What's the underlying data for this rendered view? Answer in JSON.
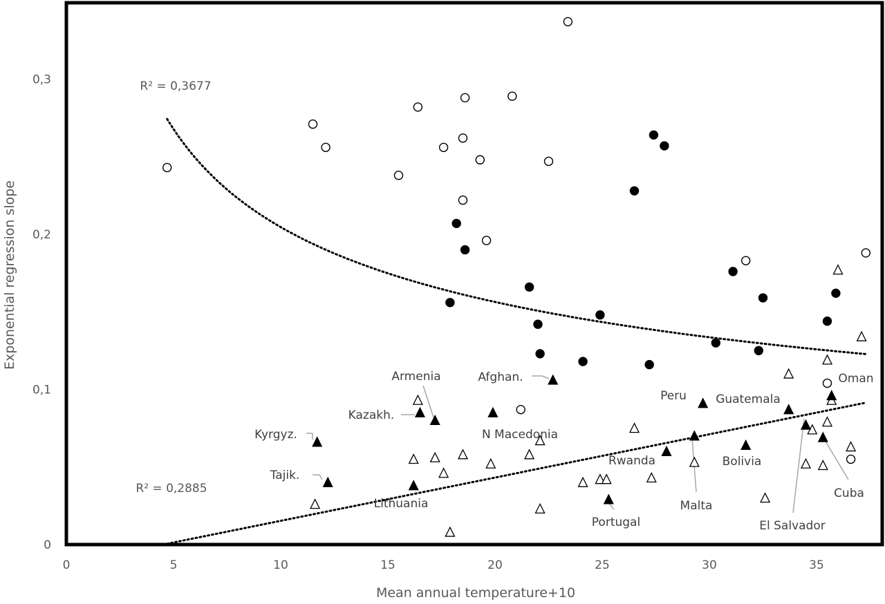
{
  "chart_data": {
    "type": "scatter",
    "xlabel": "Mean annual temperature+10",
    "ylabel": "Exponential regression slope",
    "xlim": [
      0,
      37.5
    ],
    "ylim": [
      0,
      0.35
    ],
    "x_ticks": [
      "0",
      "5",
      "10",
      "15",
      "20",
      "25",
      "30",
      "35"
    ],
    "x_tick_values": [
      0,
      5,
      10,
      15,
      20,
      25,
      30,
      35
    ],
    "y_ticks": [
      "0",
      "0,1",
      "0,2",
      "0,3"
    ],
    "y_tick_values": [
      0,
      0.1,
      0.2,
      0.3
    ],
    "grid": false,
    "legend": "none",
    "series": [
      {
        "marker": "open-circle",
        "points": [
          [
            4.7,
            0.243
          ],
          [
            11.5,
            0.271
          ],
          [
            12.1,
            0.256
          ],
          [
            15.5,
            0.238
          ],
          [
            16.4,
            0.282
          ],
          [
            17.6,
            0.256
          ],
          [
            18.5,
            0.262
          ],
          [
            18.6,
            0.288
          ],
          [
            18.5,
            0.222
          ],
          [
            19.3,
            0.248
          ],
          [
            19.6,
            0.196
          ],
          [
            20.8,
            0.289
          ],
          [
            21.2,
            0.087
          ],
          [
            22.5,
            0.247
          ],
          [
            23.4,
            0.337
          ],
          [
            31.7,
            0.183
          ],
          [
            35.5,
            0.104
          ],
          [
            36.6,
            0.055
          ],
          [
            37.3,
            0.188
          ]
        ]
      },
      {
        "marker": "filled-circle",
        "points": [
          [
            17.9,
            0.156
          ],
          [
            18.2,
            0.207
          ],
          [
            18.6,
            0.19
          ],
          [
            21.6,
            0.166
          ],
          [
            22.0,
            0.142
          ],
          [
            22.1,
            0.123
          ],
          [
            24.1,
            0.118
          ],
          [
            24.9,
            0.148
          ],
          [
            26.5,
            0.228
          ],
          [
            27.2,
            0.116
          ],
          [
            27.4,
            0.264
          ],
          [
            27.9,
            0.257
          ],
          [
            30.3,
            0.13
          ],
          [
            31.1,
            0.176
          ],
          [
            32.3,
            0.125
          ],
          [
            32.5,
            0.159
          ],
          [
            35.5,
            0.144
          ],
          [
            35.9,
            0.162
          ]
        ]
      },
      {
        "marker": "open-triangle",
        "points": [
          [
            11.6,
            0.026
          ],
          [
            16.2,
            0.055
          ],
          [
            16.4,
            0.093
          ],
          [
            17.2,
            0.056
          ],
          [
            17.6,
            0.046
          ],
          [
            17.9,
            0.008
          ],
          [
            18.5,
            0.058
          ],
          [
            19.8,
            0.052
          ],
          [
            21.6,
            0.058
          ],
          [
            22.1,
            0.023
          ],
          [
            22.1,
            0.067
          ],
          [
            24.1,
            0.04
          ],
          [
            24.9,
            0.042
          ],
          [
            25.2,
            0.042
          ],
          [
            26.5,
            0.075
          ],
          [
            27.3,
            0.043
          ],
          [
            29.3,
            0.053
          ],
          [
            32.6,
            0.03
          ],
          [
            33.7,
            0.11
          ],
          [
            34.5,
            0.052
          ],
          [
            34.8,
            0.074
          ],
          [
            35.3,
            0.051
          ],
          [
            35.5,
            0.079
          ],
          [
            35.5,
            0.119
          ],
          [
            35.7,
            0.093
          ],
          [
            36.0,
            0.177
          ],
          [
            36.6,
            0.063
          ],
          [
            37.1,
            0.134
          ]
        ]
      },
      {
        "marker": "filled-triangle",
        "points": [
          [
            11.7,
            0.066
          ],
          [
            12.2,
            0.04
          ],
          [
            16.2,
            0.038
          ],
          [
            16.5,
            0.085
          ],
          [
            17.2,
            0.08
          ],
          [
            19.9,
            0.085
          ],
          [
            22.7,
            0.106
          ],
          [
            25.3,
            0.029
          ],
          [
            28.0,
            0.06
          ],
          [
            29.3,
            0.07
          ],
          [
            29.7,
            0.091
          ],
          [
            31.7,
            0.064
          ],
          [
            33.7,
            0.087
          ],
          [
            34.5,
            0.077
          ],
          [
            35.3,
            0.069
          ],
          [
            35.7,
            0.096
          ]
        ]
      }
    ],
    "trendlines": [
      {
        "kind": "power",
        "a": 0.5,
        "b": -0.388,
        "x_range": [
          4.7,
          37.3
        ],
        "label": "R² = 0,3677"
      },
      {
        "kind": "linear",
        "intercept": -0.0126,
        "slope": 0.00279,
        "x_range": [
          4.7,
          37.3
        ],
        "label": "R² = 0,2885"
      }
    ],
    "annotations": [
      {
        "text": "Armenia",
        "x": 17.2,
        "y": 0.08,
        "leader": true
      },
      {
        "text": "Kazakh.",
        "x": 16.5,
        "y": 0.085,
        "leader": true
      },
      {
        "text": "Kyrgyz.",
        "x": 11.7,
        "y": 0.066,
        "leader": true
      },
      {
        "text": "Tajik.",
        "x": 12.2,
        "y": 0.04,
        "leader": true
      },
      {
        "text": "Lithuania",
        "x": 16.2,
        "y": 0.038,
        "leader": false
      },
      {
        "text": "Afghan.",
        "x": 22.7,
        "y": 0.106,
        "leader": true
      },
      {
        "text": "N Macedonia",
        "x": 19.9,
        "y": 0.085,
        "leader": false
      },
      {
        "text": "Portugal",
        "x": 25.3,
        "y": 0.029,
        "leader": true
      },
      {
        "text": "Rwanda",
        "x": 28.0,
        "y": 0.06,
        "leader": false
      },
      {
        "text": "Peru",
        "x": 29.7,
        "y": 0.091,
        "leader": false
      },
      {
        "text": "Malta",
        "x": 29.3,
        "y": 0.07,
        "leader": true
      },
      {
        "text": "Guatemala",
        "x": 33.7,
        "y": 0.087,
        "leader": false
      },
      {
        "text": "Bolivia",
        "x": 31.7,
        "y": 0.064,
        "leader": false
      },
      {
        "text": "El Salvador",
        "x": 34.5,
        "y": 0.077,
        "leader": true
      },
      {
        "text": "Oman",
        "x": 35.7,
        "y": 0.096,
        "leader": false
      },
      {
        "text": "Cuba",
        "x": 35.3,
        "y": 0.069,
        "leader": true
      }
    ]
  }
}
